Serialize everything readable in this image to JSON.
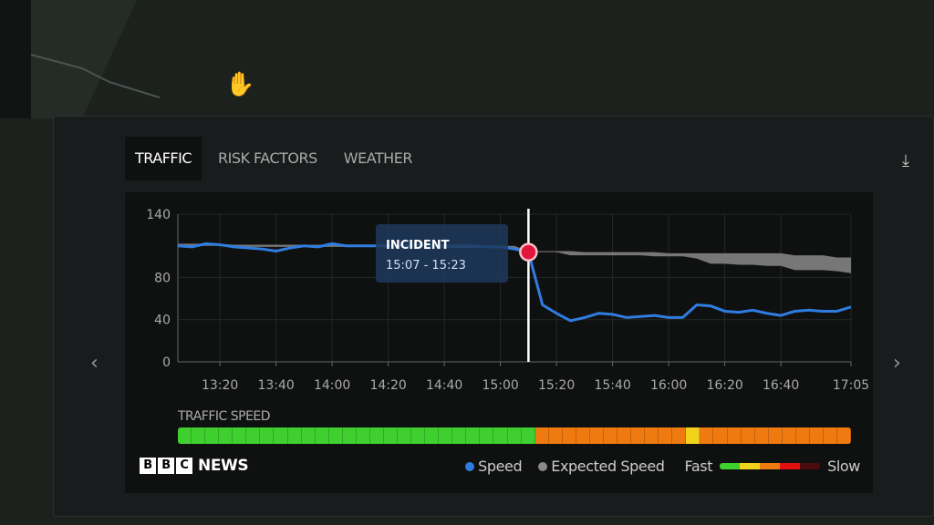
{
  "tabs": [
    {
      "label": "TRAFFIC",
      "active": true
    },
    {
      "label": "RISK FACTORS",
      "active": false
    },
    {
      "label": "WEATHER",
      "active": false
    }
  ],
  "icons": {
    "download": "download-icon",
    "prev": "chevron-left-icon",
    "next": "chevron-right-icon",
    "cursor": "hand-cursor-icon"
  },
  "chart_data": {
    "type": "line",
    "ylim": [
      0,
      140
    ],
    "yticks": [
      "0",
      "40",
      "80",
      "140"
    ],
    "xticks": [
      "13:20",
      "13:40",
      "14:00",
      "14:20",
      "14:40",
      "15:00",
      "15:20",
      "15:40",
      "16:00",
      "16:20",
      "16:40",
      "17:05"
    ],
    "x": [
      "13:05",
      "13:10",
      "13:15",
      "13:20",
      "13:25",
      "13:30",
      "13:35",
      "13:40",
      "13:45",
      "13:50",
      "13:55",
      "14:00",
      "14:05",
      "14:10",
      "14:15",
      "14:20",
      "14:25",
      "14:30",
      "14:35",
      "14:40",
      "14:45",
      "14:50",
      "14:55",
      "15:00",
      "15:05",
      "15:10",
      "15:15",
      "15:20",
      "15:25",
      "15:30",
      "15:35",
      "15:40",
      "15:45",
      "15:50",
      "15:55",
      "16:00",
      "16:05",
      "16:10",
      "16:15",
      "16:20",
      "16:25",
      "16:30",
      "16:35",
      "16:40",
      "16:45",
      "16:50",
      "16:55",
      "17:00",
      "17:05"
    ],
    "series": [
      {
        "name": "Speed",
        "color": "#2f7de0",
        "values": [
          110,
          109,
          112,
          111,
          109,
          108,
          107,
          105,
          108,
          110,
          109,
          112,
          110,
          110,
          110,
          110,
          110,
          111,
          110,
          110,
          110,
          110,
          109,
          109,
          107,
          104,
          54,
          46,
          39,
          42,
          46,
          45,
          42,
          43,
          44,
          42,
          42,
          54,
          53,
          48,
          47,
          49,
          46,
          44,
          48,
          49,
          48,
          48,
          52
        ]
      },
      {
        "name": "Expected Speed",
        "color": "#8a8a8a",
        "upper": [
          112,
          112,
          112,
          112,
          111,
          111,
          111,
          111,
          111,
          111,
          111,
          111,
          111,
          111,
          111,
          111,
          111,
          111,
          111,
          110,
          110,
          110,
          110,
          110,
          110,
          105,
          105,
          105,
          105,
          104,
          104,
          104,
          104,
          104,
          104,
          103,
          103,
          103,
          103,
          103,
          103,
          103,
          103,
          103,
          101,
          101,
          101,
          99,
          99
        ],
        "lower": [
          110,
          110,
          110,
          110,
          109,
          109,
          109,
          109,
          109,
          109,
          109,
          109,
          109,
          109,
          109,
          109,
          109,
          109,
          109,
          108,
          108,
          108,
          108,
          108,
          107,
          104,
          104,
          104,
          101,
          101,
          101,
          101,
          101,
          101,
          100,
          100,
          100,
          98,
          93,
          93,
          92,
          92,
          91,
          91,
          87,
          87,
          87,
          86,
          84
        ]
      }
    ],
    "annotation": {
      "title": "INCIDENT",
      "range": "15:07 - 15:23",
      "marker_time": "15:10"
    }
  },
  "traffic_speed": {
    "label": "TRAFFIC SPEED",
    "segments": [
      "fast",
      "fast",
      "fast",
      "fast",
      "fast",
      "fast",
      "fast",
      "fast",
      "fast",
      "fast",
      "fast",
      "fast",
      "fast",
      "fast",
      "fast",
      "fast",
      "fast",
      "fast",
      "fast",
      "fast",
      "fast",
      "fast",
      "fast",
      "fast",
      "fast",
      "fast",
      "medium",
      "medium",
      "medium",
      "medium",
      "medium",
      "medium",
      "medium",
      "medium",
      "medium",
      "medium",
      "medium",
      "moderate",
      "medium",
      "medium",
      "medium",
      "medium",
      "medium",
      "medium",
      "medium",
      "medium",
      "medium",
      "medium",
      "medium"
    ]
  },
  "colors": {
    "fast": "#3fcf2f",
    "moderate": "#f2d21b",
    "medium": "#ef7a10",
    "slow": "#e01010",
    "very_slow": "#4a0c0c",
    "incident": "#e0163a"
  },
  "footer": {
    "logo": "BBC NEWS",
    "logo_letters": [
      "B",
      "B",
      "C"
    ],
    "logo_word": "NEWS",
    "legend_speed": "Speed",
    "legend_expected": "Expected Speed",
    "fast": "Fast",
    "slow": "Slow"
  }
}
